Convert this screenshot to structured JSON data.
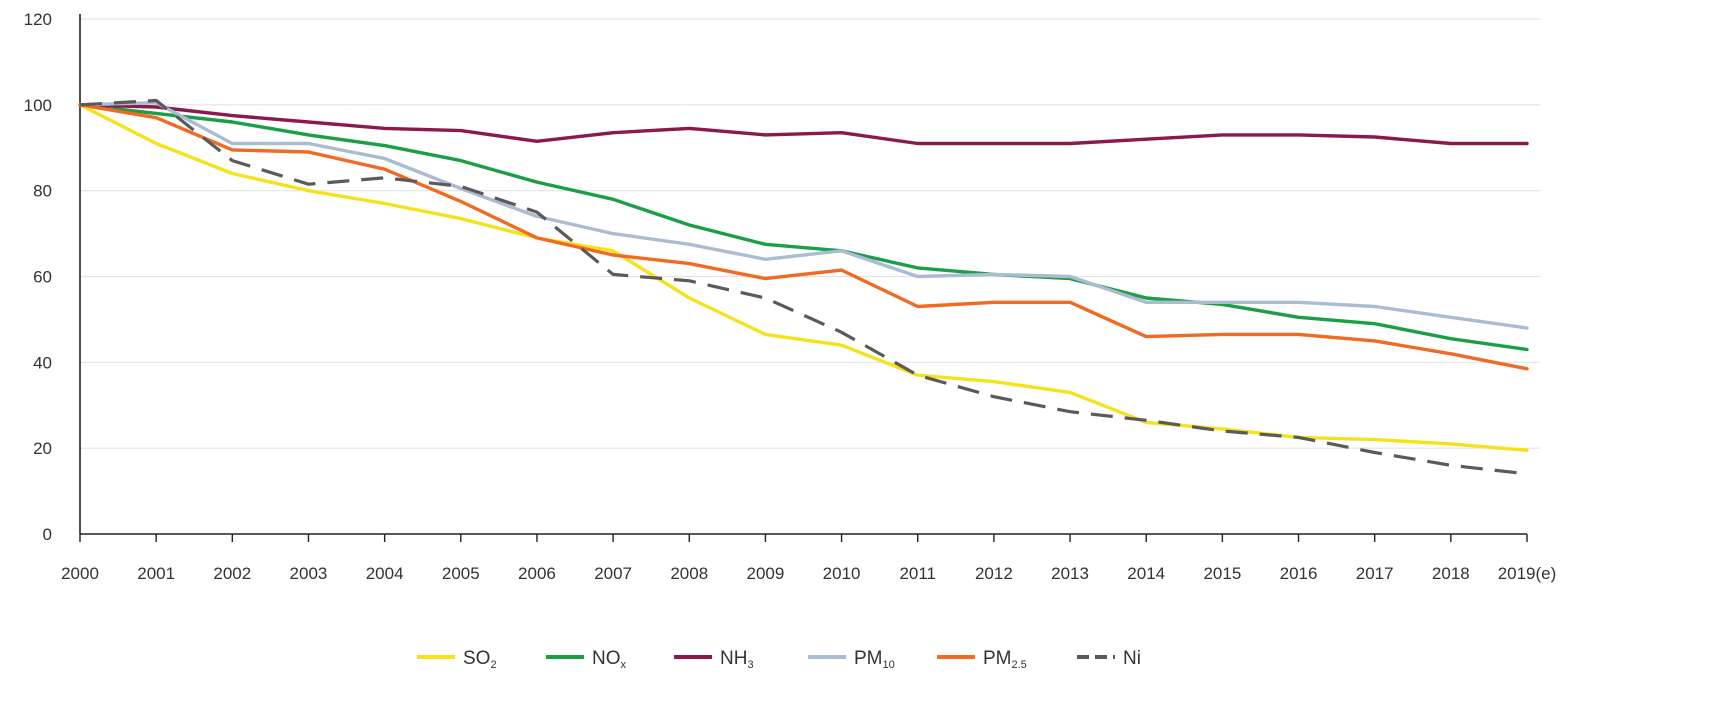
{
  "chart_data": {
    "type": "line",
    "title": "",
    "xlabel": "",
    "ylabel": "",
    "categories": [
      "2000",
      "2001",
      "2002",
      "2003",
      "2004",
      "2005",
      "2006",
      "2007",
      "2008",
      "2009",
      "2010",
      "2011",
      "2012",
      "2013",
      "2014",
      "2015",
      "2016",
      "2017",
      "2018",
      "2019(e)"
    ],
    "ylim": [
      0,
      120
    ],
    "yticks": [
      0,
      20,
      40,
      60,
      80,
      100,
      120
    ],
    "grid": true,
    "legend_position": "bottom",
    "series": [
      {
        "name": "SO",
        "sub": "2",
        "color": "#f5e21c",
        "dash": false,
        "values": [
          100,
          91,
          84,
          80,
          77,
          73.5,
          69,
          66,
          55,
          46.5,
          44,
          37,
          35.5,
          33,
          26,
          24.5,
          22.5,
          22,
          21,
          19.5
        ]
      },
      {
        "name": "NO",
        "sub": "x",
        "color": "#1a9e46",
        "dash": false,
        "values": [
          100,
          98,
          96,
          93,
          90.5,
          87,
          82,
          78,
          72,
          67.5,
          66,
          62,
          60.5,
          59.5,
          55,
          53.5,
          50.5,
          49,
          45.5,
          43
        ]
      },
      {
        "name": "NH",
        "sub": "3",
        "color": "#8b1a4a",
        "dash": false,
        "values": [
          100,
          99.5,
          97.5,
          96,
          94.5,
          94,
          91.5,
          93.5,
          94.5,
          93,
          93.5,
          91,
          91,
          91,
          92,
          93,
          93,
          92.5,
          91,
          91
        ]
      },
      {
        "name": "PM",
        "sub": "10",
        "color": "#a9bcd2",
        "dash": false,
        "values": [
          100,
          100.5,
          91,
          91,
          87.5,
          80.5,
          74,
          70,
          67.5,
          64,
          66,
          60,
          60.5,
          60,
          54,
          54,
          54,
          53,
          50.5,
          48
        ]
      },
      {
        "name": "PM",
        "sub": "2.5",
        "color": "#f06a24",
        "dash": false,
        "values": [
          100,
          97,
          89.5,
          89,
          85,
          77.5,
          69,
          65,
          63,
          59.5,
          61.5,
          53,
          54,
          54,
          46,
          46.5,
          46.5,
          45,
          42,
          38.5
        ]
      },
      {
        "name": "Ni",
        "sub": "",
        "color": "#5a5a5a",
        "dash": true,
        "values": [
          100,
          101,
          87,
          81.5,
          83,
          81,
          75,
          60.5,
          59,
          55,
          47,
          37,
          32,
          28.5,
          26.5,
          24,
          22.5,
          19,
          16,
          14
        ]
      }
    ]
  }
}
